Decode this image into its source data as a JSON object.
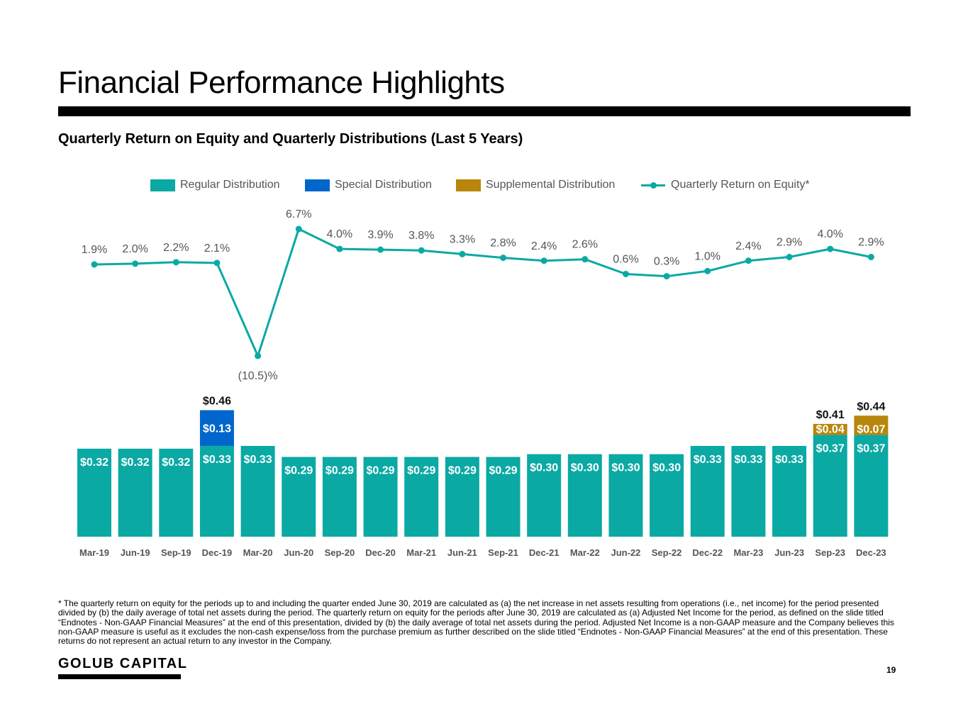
{
  "page": {
    "title": "Financial Performance Highlights",
    "subtitle": "Quarterly Return on Equity and Quarterly Distributions (Last 5 Years)",
    "footnote": "* The quarterly return on equity for the periods up to and including the quarter ended June 30, 2019 are calculated as (a) the net increase in net assets resulting from operations (i.e., net income) for the period presented divided by (b) the daily average of total net assets during the period. The quarterly return on equity for the periods after June 30, 2019 are calculated as (a) Adjusted Net Income for the period, as defined on the slide titled “Endnotes - Non-GAAP Financial Measures” at the end of this presentation, divided by (b) the daily average of total net assets during the period. Adjusted Net Income is a non-GAAP measure and the Company believes this non-GAAP measure is useful as it excludes the non-cash expense/loss from the purchase premium as further described on the slide titled “Endnotes - Non-GAAP Financial Measures”  at the end of this presentation. These returns do not represent an actual return to any investor in the Company.",
    "brand": "GOLUB CAPITAL",
    "page_number": "19"
  },
  "legend": {
    "regular": "Regular Distribution",
    "special": "Special Distribution",
    "supplemental": "Supplemental Distribution",
    "roe": "Quarterly Return on Equity*"
  },
  "colors": {
    "regular": "#0aa9a4",
    "special": "#0066cc",
    "supplemental": "#b8860b",
    "roe_line": "#0aa9a4",
    "label_dark": "#111111",
    "label_light": "#ffffff",
    "roe_label": "#555555",
    "axis_label": "#555555"
  },
  "chart_data": {
    "type": "bar",
    "title": "Quarterly Return on Equity and Quarterly Distributions (Last 5 Years)",
    "categories": [
      "Mar-19",
      "Jun-19",
      "Sep-19",
      "Dec-19",
      "Mar-20",
      "Jun-20",
      "Sep-20",
      "Dec-20",
      "Mar-21",
      "Jun-21",
      "Sep-21",
      "Dec-21",
      "Mar-22",
      "Jun-22",
      "Sep-22",
      "Dec-22",
      "Mar-23",
      "Jun-23",
      "Sep-23",
      "Dec-23"
    ],
    "series": [
      {
        "name": "Regular Distribution",
        "type": "bar",
        "stack": "dist",
        "values": [
          0.32,
          0.32,
          0.32,
          0.33,
          0.33,
          0.29,
          0.29,
          0.29,
          0.29,
          0.29,
          0.29,
          0.3,
          0.3,
          0.3,
          0.3,
          0.33,
          0.33,
          0.33,
          0.37,
          0.37
        ],
        "labels": [
          "$0.32",
          "$0.32",
          "$0.32",
          "$0.33",
          "$0.33",
          "$0.29",
          "$0.29",
          "$0.29",
          "$0.29",
          "$0.29",
          "$0.29",
          "$0.30",
          "$0.30",
          "$0.30",
          "$0.30",
          "$0.33",
          "$0.33",
          "$0.33",
          "$0.37",
          "$0.37"
        ]
      },
      {
        "name": "Special Distribution",
        "type": "bar",
        "stack": "dist",
        "values": [
          0,
          0,
          0,
          0.13,
          0,
          0,
          0,
          0,
          0,
          0,
          0,
          0,
          0,
          0,
          0,
          0,
          0,
          0,
          0,
          0
        ],
        "labels": [
          "",
          "",
          "",
          "$0.13",
          "",
          "",
          "",
          "",
          "",
          "",
          "",
          "",
          "",
          "",
          "",
          "",
          "",
          "",
          "",
          ""
        ]
      },
      {
        "name": "Supplemental Distribution",
        "type": "bar",
        "stack": "dist",
        "values": [
          0,
          0,
          0,
          0,
          0,
          0,
          0,
          0,
          0,
          0,
          0,
          0,
          0,
          0,
          0,
          0,
          0,
          0,
          0.04,
          0.07
        ],
        "labels": [
          "",
          "",
          "",
          "",
          "",
          "",
          "",
          "",
          "",
          "",
          "",
          "",
          "",
          "",
          "",
          "",
          "",
          "",
          "$0.04",
          "$0.07"
        ]
      },
      {
        "name": "Quarterly Return on Equity*",
        "type": "line",
        "values": [
          1.9,
          2.0,
          2.2,
          2.1,
          -10.5,
          6.7,
          4.0,
          3.9,
          3.8,
          3.3,
          2.8,
          2.4,
          2.6,
          0.6,
          0.3,
          1.0,
          2.4,
          2.9,
          4.0,
          2.9
        ],
        "labels": [
          "1.9%",
          "2.0%",
          "2.2%",
          "2.1%",
          "(10.5)%",
          "6.7%",
          "4.0%",
          "3.9%",
          "3.8%",
          "3.3%",
          "2.8%",
          "2.4%",
          "2.6%",
          "0.6%",
          "0.3%",
          "1.0%",
          "2.4%",
          "2.9%",
          "4.0%",
          "2.9%"
        ]
      }
    ],
    "totals": [
      "",
      "",
      "",
      "$0.46",
      "",
      "",
      "",
      "",
      "",
      "",
      "",
      "",
      "",
      "",
      "",
      "",
      "",
      "",
      "$0.41",
      "$0.44"
    ],
    "bar_ylim": [
      0,
      0.55
    ],
    "roe_ylim": [
      -10.5,
      6.7
    ],
    "grid": false,
    "legend_position": "top-center"
  }
}
